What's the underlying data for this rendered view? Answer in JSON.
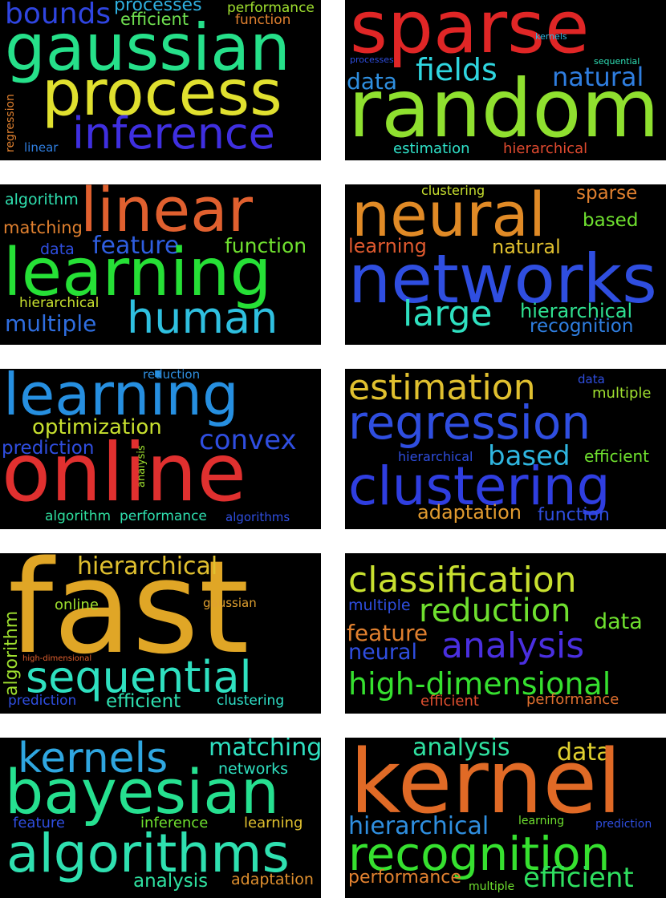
{
  "panels": [
    {
      "words": [
        {
          "text": "bounds",
          "color": "#2f45e0"
        },
        {
          "text": "processes",
          "color": "#2fb0e0"
        },
        {
          "text": "performance",
          "color": "#9fe02f"
        },
        {
          "text": "efficient",
          "color": "#6fe050"
        },
        {
          "text": "function",
          "color": "#e0802f"
        },
        {
          "text": "gaussian",
          "color": "#26e08a"
        },
        {
          "text": "process",
          "color": "#e0e02f"
        },
        {
          "text": "regression",
          "color": "#e0802f"
        },
        {
          "text": "inference",
          "color": "#3f2fe0"
        },
        {
          "text": "linear",
          "color": "#2f7ee0"
        }
      ]
    },
    {
      "words": [
        {
          "text": "sparse",
          "color": "#e02626"
        },
        {
          "text": "kernels",
          "color": "#2fb6e0"
        },
        {
          "text": "processes",
          "color": "#2f4ee0"
        },
        {
          "text": "sequential",
          "color": "#2fe0b6"
        },
        {
          "text": "fields",
          "color": "#2fd6e0"
        },
        {
          "text": "data",
          "color": "#2f8fe0"
        },
        {
          "text": "natural",
          "color": "#2f7ee0"
        },
        {
          "text": "random",
          "color": "#8fe02f"
        },
        {
          "text": "estimation",
          "color": "#2fe0c8"
        },
        {
          "text": "hierarchical",
          "color": "#e04a2f"
        }
      ]
    },
    {
      "words": [
        {
          "text": "algorithm",
          "color": "#2fe0b0"
        },
        {
          "text": "linear",
          "color": "#e0602f"
        },
        {
          "text": "matching",
          "color": "#e0802f"
        },
        {
          "text": "data",
          "color": "#2f4ee0"
        },
        {
          "text": "feature",
          "color": "#2f5ee0"
        },
        {
          "text": "function",
          "color": "#6fe02f"
        },
        {
          "text": "learning",
          "color": "#26e036"
        },
        {
          "text": "hierarchical",
          "color": "#c8e02f"
        },
        {
          "text": "multiple",
          "color": "#2f6ee0"
        },
        {
          "text": "human",
          "color": "#2fc0e0"
        }
      ]
    },
    {
      "words": [
        {
          "text": "clustering",
          "color": "#c8e02f"
        },
        {
          "text": "sparse",
          "color": "#e0802f"
        },
        {
          "text": "neural",
          "color": "#e08a26"
        },
        {
          "text": "based",
          "color": "#6fe02f"
        },
        {
          "text": "learning",
          "color": "#e05a2f"
        },
        {
          "text": "natural",
          "color": "#e0c02f"
        },
        {
          "text": "networks",
          "color": "#2f4ee0"
        },
        {
          "text": "large",
          "color": "#2fe0c0"
        },
        {
          "text": "hierarchical",
          "color": "#2fe090"
        },
        {
          "text": "recognition",
          "color": "#2f7ee0"
        }
      ]
    },
    {
      "words": [
        {
          "text": "reduction",
          "color": "#2f8fe0"
        },
        {
          "text": "learning",
          "color": "#268fe0"
        },
        {
          "text": "optimization",
          "color": "#c8e02f"
        },
        {
          "text": "convex",
          "color": "#2f4ee0"
        },
        {
          "text": "prediction",
          "color": "#2f4ee0"
        },
        {
          "text": "analysis",
          "color": "#9fe02f"
        },
        {
          "text": "online",
          "color": "#e0302f"
        },
        {
          "text": "algorithm",
          "color": "#2fe0a0"
        },
        {
          "text": "performance",
          "color": "#2fe0b0"
        },
        {
          "text": "algorithms",
          "color": "#2f4ee0"
        }
      ]
    },
    {
      "words": [
        {
          "text": "estimation",
          "color": "#e0c02f"
        },
        {
          "text": "data",
          "color": "#2f4ee0"
        },
        {
          "text": "multiple",
          "color": "#9fe02f"
        },
        {
          "text": "regression",
          "color": "#2f4ee0"
        },
        {
          "text": "hierarchical",
          "color": "#2f4ee0"
        },
        {
          "text": "based",
          "color": "#2fb6e0"
        },
        {
          "text": "efficient",
          "color": "#6fe02f"
        },
        {
          "text": "clustering",
          "color": "#2f3ee0"
        },
        {
          "text": "adaptation",
          "color": "#e09a2f"
        },
        {
          "text": "function",
          "color": "#2f4ee0"
        }
      ]
    },
    {
      "words": [
        {
          "text": "fast",
          "color": "#e0a626"
        },
        {
          "text": "hierarchical",
          "color": "#e0c02f"
        },
        {
          "text": "algorithm",
          "color": "#9fe02f"
        },
        {
          "text": "online",
          "color": "#9fe02f"
        },
        {
          "text": "gaussian",
          "color": "#e0a02f"
        },
        {
          "text": "high-dimensional",
          "color": "#e0602f"
        },
        {
          "text": "sequential",
          "color": "#2fe0c0"
        },
        {
          "text": "prediction",
          "color": "#2f4ee0"
        },
        {
          "text": "efficient",
          "color": "#2fe0b0"
        },
        {
          "text": "clustering",
          "color": "#2fe0c8"
        }
      ]
    },
    {
      "words": [
        {
          "text": "classification",
          "color": "#c8e02f"
        },
        {
          "text": "multiple",
          "color": "#2f4ee0"
        },
        {
          "text": "reduction",
          "color": "#6fe02f"
        },
        {
          "text": "data",
          "color": "#6fe02f"
        },
        {
          "text": "feature",
          "color": "#e0802f"
        },
        {
          "text": "analysis",
          "color": "#4a2fe0"
        },
        {
          "text": "neural",
          "color": "#2f4ee0"
        },
        {
          "text": "high-dimensional",
          "color": "#36e02f"
        },
        {
          "text": "efficient",
          "color": "#e0502f"
        },
        {
          "text": "performance",
          "color": "#e0702f"
        }
      ]
    },
    {
      "words": [
        {
          "text": "kernels",
          "color": "#2fa6e0"
        },
        {
          "text": "matching",
          "color": "#2fe0c0"
        },
        {
          "text": "networks",
          "color": "#2fe0c0"
        },
        {
          "text": "bayesian",
          "color": "#26e090"
        },
        {
          "text": "feature",
          "color": "#2f4ee0"
        },
        {
          "text": "inference",
          "color": "#6fe02f"
        },
        {
          "text": "learning",
          "color": "#e0c02f"
        },
        {
          "text": "algorithms",
          "color": "#2fe0b0"
        },
        {
          "text": "analysis",
          "color": "#2fe0a0"
        },
        {
          "text": "adaptation",
          "color": "#e0902f"
        }
      ]
    },
    {
      "words": [
        {
          "text": "analysis",
          "color": "#2fe0a0"
        },
        {
          "text": "data",
          "color": "#e0d02f"
        },
        {
          "text": "kernel",
          "color": "#e06a26"
        },
        {
          "text": "hierarchical",
          "color": "#2f8fe0"
        },
        {
          "text": "learning",
          "color": "#6fe02f"
        },
        {
          "text": "prediction",
          "color": "#2f4ee0"
        },
        {
          "text": "recognition",
          "color": "#36e02f"
        },
        {
          "text": "performance",
          "color": "#e0802f"
        },
        {
          "text": "multiple",
          "color": "#6fe02f"
        },
        {
          "text": "efficient",
          "color": "#2fe060"
        }
      ]
    }
  ]
}
